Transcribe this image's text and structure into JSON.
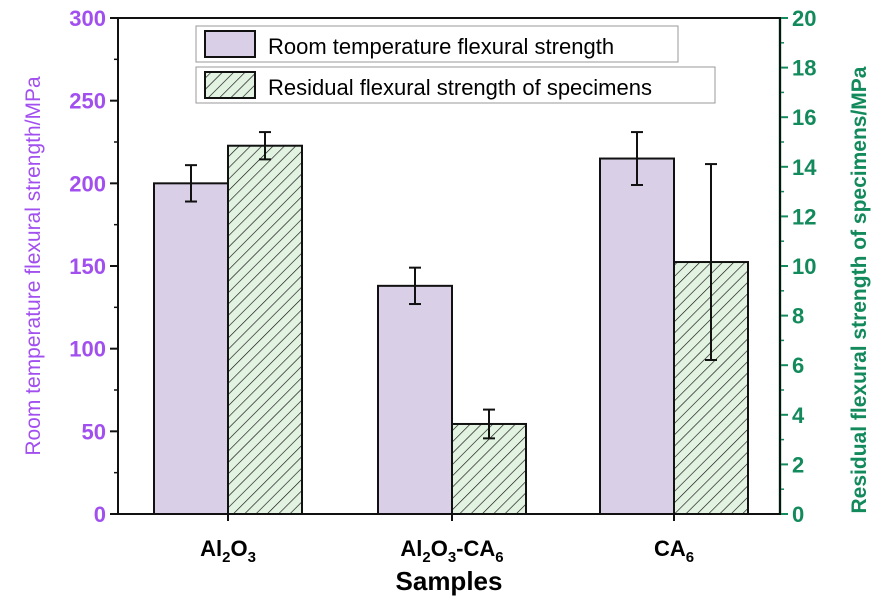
{
  "chart_data": {
    "type": "bar",
    "categories": [
      "Al2O3",
      "Al2O3-CA6",
      "CA6"
    ],
    "xlabel": "Samples",
    "ylabel": "Room temperature flexural strength/MPa",
    "ylabel_right": "Residual flexural strength of specimens/MPa",
    "ylim": [
      0,
      300
    ],
    "ylim_right": [
      0,
      20
    ],
    "yticks": [
      0,
      50,
      100,
      150,
      200,
      250,
      300
    ],
    "yticks_right": [
      0,
      2,
      4,
      6,
      8,
      10,
      12,
      14,
      16,
      18,
      20
    ],
    "legend_position": "top-center",
    "grid": false,
    "series": [
      {
        "name": "Room temperature flexural strength",
        "axis": "left",
        "values": [
          200,
          138,
          215
        ],
        "errors": [
          11,
          11,
          16
        ],
        "color": "#d9d0e7",
        "pattern": "solid"
      },
      {
        "name": "Residual flexural strength of specimens",
        "axis": "right",
        "values": [
          14.85,
          3.63,
          10.16
        ],
        "errors": [
          0.55,
          0.58,
          3.95
        ],
        "color": "#e2f3e2",
        "pattern": "hatch"
      }
    ],
    "colors": {
      "left_axis": "#a24ff0",
      "right_axis": "#138a5c"
    }
  }
}
